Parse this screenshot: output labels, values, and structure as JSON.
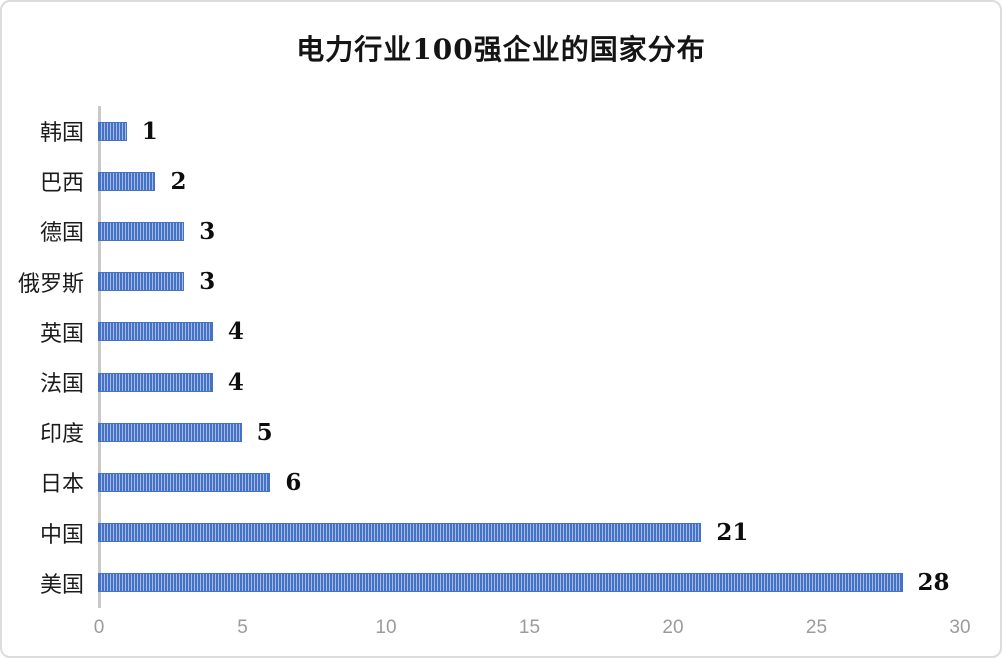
{
  "page": {
    "background": "#ffffff",
    "frame_border_color": "#dcdcdc"
  },
  "chart_data": {
    "type": "bar",
    "orientation": "horizontal",
    "title": "电力行业100强企业的国家分布",
    "categories": [
      "韩国",
      "巴西",
      "德国",
      "俄罗斯",
      "英国",
      "法国",
      "印度",
      "日本",
      "中国",
      "美国"
    ],
    "values": [
      1,
      2,
      3,
      3,
      4,
      4,
      5,
      6,
      21,
      28
    ],
    "value_labels": [
      "1",
      "2",
      "3",
      "3",
      "4",
      "4",
      "5",
      "6",
      "21",
      "28"
    ],
    "categories_order": "top-to-bottom as displayed",
    "xlabel": "",
    "ylabel": "",
    "xlim": [
      0,
      30
    ],
    "x_ticks": [
      0,
      5,
      10,
      15,
      20,
      25,
      30
    ],
    "grid": false,
    "legend": false,
    "bar_pattern": "vertical-stripes",
    "colors": {
      "bar_stripe_dark": "#4472c4",
      "bar_stripe_light": "#a8b9e6",
      "bar_border": "#4472c4",
      "axis_line": "#c9c9c9",
      "tick_label": "#9b9b9b",
      "title_text": "#141414",
      "category_text": "#1c1c1c",
      "value_text": "#0d0d0d"
    }
  }
}
